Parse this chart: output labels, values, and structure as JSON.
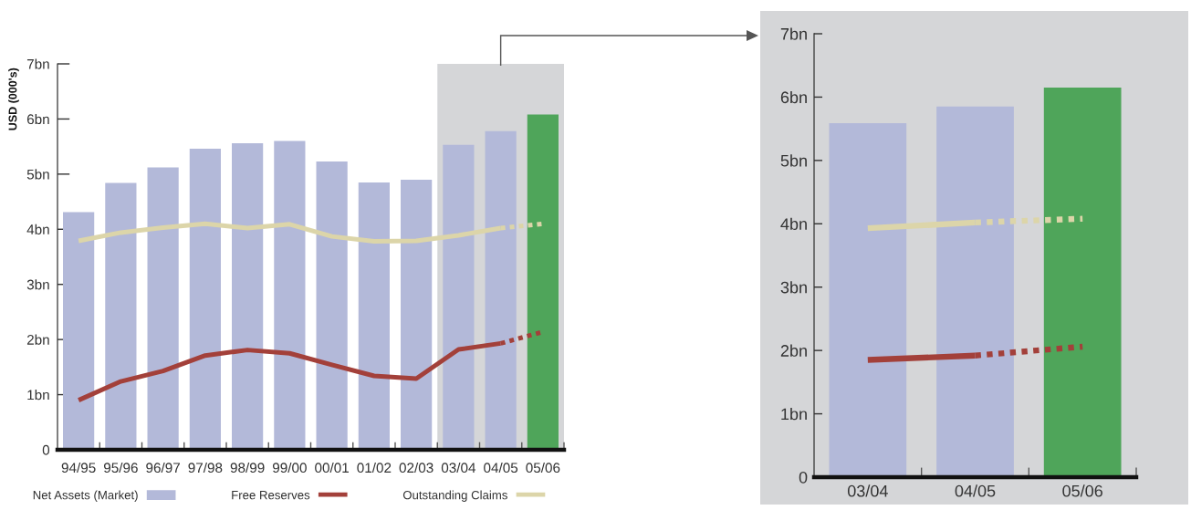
{
  "chart_data": [
    {
      "type": "bar",
      "ylabel": "USD (000's)",
      "categories": [
        "94/95",
        "95/96",
        "96/97",
        "97/98",
        "98/99",
        "99/00",
        "00/01",
        "01/02",
        "02/03",
        "03/04",
        "04/05",
        "05/06"
      ],
      "series": [
        {
          "name": "Net Assets (Market)",
          "color": "#b3b9d9",
          "colors": [
            "#b3b9d9",
            "#b3b9d9",
            "#b3b9d9",
            "#b3b9d9",
            "#b3b9d9",
            "#b3b9d9",
            "#b3b9d9",
            "#b3b9d9",
            "#b3b9d9",
            "#b3b9d9",
            "#b3b9d9",
            "#4fa55a"
          ],
          "values": [
            4.31,
            4.84,
            5.12,
            5.46,
            5.56,
            5.6,
            5.23,
            4.85,
            4.9,
            5.53,
            5.78,
            6.08
          ]
        },
        {
          "name": "Free Reserves",
          "type": "line",
          "color": "#a3403a",
          "values": [
            0.9,
            1.24,
            1.43,
            1.71,
            1.81,
            1.75,
            1.54,
            1.34,
            1.29,
            1.82,
            1.93,
            null
          ]
        },
        {
          "type": "line",
          "color": "#a3403a",
          "line_style": "dotted",
          "values": [
            null,
            null,
            null,
            null,
            null,
            null,
            null,
            null,
            null,
            null,
            1.93,
            2.14
          ]
        },
        {
          "name": "Outstanding Claims",
          "type": "line",
          "color": "#dcd5a9",
          "values": [
            3.79,
            3.94,
            4.03,
            4.1,
            4.02,
            4.09,
            3.87,
            3.78,
            3.79,
            3.89,
            4.02,
            null
          ]
        },
        {
          "type": "line",
          "color": "#dcd5a9",
          "line_style": "dotted",
          "values": [
            null,
            null,
            null,
            null,
            null,
            null,
            null,
            null,
            null,
            null,
            4.02,
            4.1
          ]
        }
      ],
      "ylim": [
        0,
        7
      ],
      "yticks": [
        0,
        {
          "value": 1,
          "label": "1bn"
        },
        {
          "value": 2,
          "label": "2bn"
        },
        {
          "value": 3,
          "label": "3bn"
        },
        {
          "value": 4,
          "label": "4bn"
        },
        {
          "value": 5,
          "label": "5bn"
        },
        {
          "value": 6,
          "label": "6bn"
        },
        {
          "value": 7,
          "label": "7bn"
        }
      ],
      "bands": [
        {
          "axis": "x",
          "from": "03/04",
          "to": "05/06",
          "color": "#d5d6d8"
        }
      ],
      "line_style": "solid",
      "legend": "bottom"
    },
    {
      "type": "bar",
      "categories": [
        "03/04",
        "04/05",
        "05/06"
      ],
      "series": [
        {
          "colors": [
            "#b3b9d9",
            "#b3b9d9",
            "#4fa55a"
          ],
          "values": [
            5.59,
            5.85,
            6.15
          ]
        },
        {
          "type": "line",
          "color": "#a3403a",
          "values": [
            1.85,
            1.92,
            null
          ]
        },
        {
          "type": "line",
          "color": "#a3403a",
          "line_style": "dotted",
          "values": [
            null,
            1.92,
            2.06
          ]
        },
        {
          "type": "line",
          "color": "#dcd5a9",
          "values": [
            3.93,
            4.02,
            null
          ]
        },
        {
          "type": "line",
          "color": "#dcd5a9",
          "line_style": "dotted",
          "values": [
            null,
            4.02,
            4.08
          ]
        }
      ],
      "ylim": [
        0,
        7
      ],
      "yticks": [
        0,
        {
          "value": 1,
          "label": "1bn"
        },
        {
          "value": 2,
          "label": "2bn"
        },
        {
          "value": 3,
          "label": "3bn"
        },
        {
          "value": 4,
          "label": "4bn"
        },
        {
          "value": 5,
          "label": "5bn"
        },
        {
          "value": 6,
          "label": "6bn"
        },
        {
          "value": 7,
          "label": "7bn"
        }
      ],
      "line_style": "solid"
    }
  ]
}
